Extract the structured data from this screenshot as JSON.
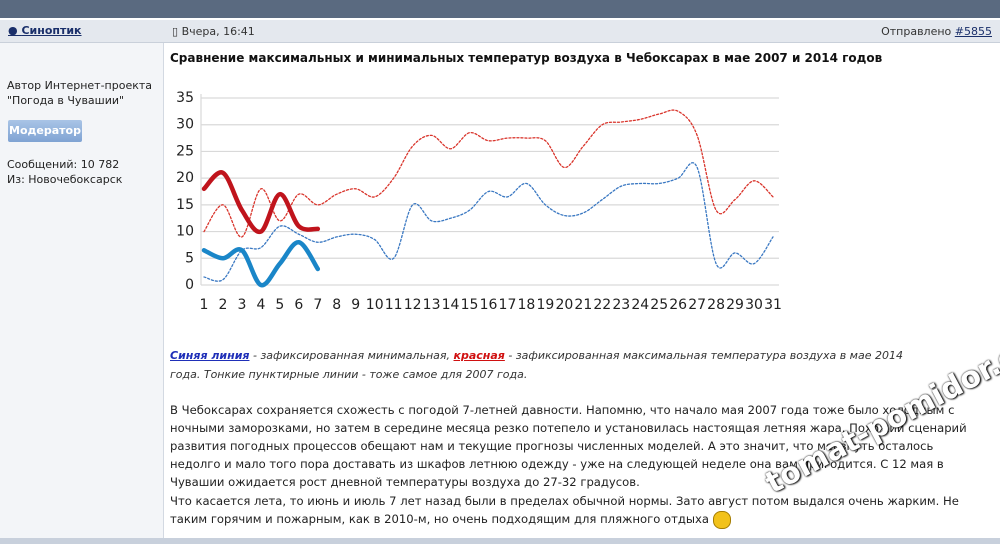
{
  "post": {
    "author": "Синоптик",
    "date": "Вчера, 16:41",
    "sent_label": "Отправлено",
    "post_number": "#5855",
    "author_info": [
      "Автор Интернет-проекта",
      "\"Погода в Чувашии\""
    ],
    "role": "Модератор",
    "messages": "Сообщений: 10 782",
    "from": "Из: Новочебоксарск",
    "title": "Сравнение максимальных и минимальных температур воздуха в Чебоксарах в мае 2007 и 2014 годов",
    "caption": [
      "Синяя линия",
      " - зафиксированная минимальная, ",
      "красная",
      " - зафиксированная максимальная температура воздуха в мае 2014 года. Тонкие пунктирные линии - тоже самое для 2007 года."
    ],
    "paragraphs": [
      "В Чебоксарах сохраняется схожесть с погодой 7-летней давности. Напомню, что начало мая 2007 года тоже было холодным с ночными заморозками, но затем в середине месяца резко потепело и установилась настоящая летняя жара. Похожий сценарий развития погодных процессов обещают нам и текущие прогнозы численных моделей. А это значит, что мерзнуть осталось недолго и мало того пора доставать из шкафов летнюю одежду - уже на следующей неделе она вам пригодится. С 12 мая в Чувашии ожидается рост дневной температуры воздуха до 27-32 градусов.",
      "Что касается лета, то июнь и июль 7 лет назад были в пределах обычной нормы. Зато август потом выдался очень жарким. Не таким горячим и пожарным, как в 2010-м, но очень подходящим для пляжного отдыха"
    ],
    "watermark": "tomat-pomidor.com"
  },
  "chart_data": {
    "type": "line",
    "categories": [
      1,
      2,
      3,
      4,
      5,
      6,
      7,
      8,
      9,
      10,
      11,
      12,
      13,
      14,
      15,
      16,
      17,
      18,
      19,
      20,
      21,
      22,
      23,
      24,
      25,
      26,
      27,
      28,
      29,
      30,
      31
    ],
    "ylim": [
      0,
      35
    ],
    "yticks": [
      0,
      5,
      10,
      15,
      20,
      25,
      30,
      35
    ],
    "grid": true,
    "series": [
      {
        "color": "#d9342b",
        "dashed": true,
        "values": [
          10,
          15,
          9,
          18,
          12,
          17,
          15,
          17,
          18,
          16.5,
          20,
          26,
          28,
          25.5,
          28.5,
          27,
          27.5,
          27.5,
          27,
          22,
          26,
          30,
          30.5,
          31,
          32,
          32.5,
          28,
          14,
          16,
          19.5,
          16.5
        ]
      },
      {
        "color": "#3a78c2",
        "dashed": true,
        "values": [
          1.5,
          1,
          6.5,
          7,
          11,
          9.5,
          8,
          9,
          9.5,
          8.5,
          5,
          15,
          12,
          12.5,
          14,
          17.5,
          16.5,
          19,
          15,
          13,
          13.5,
          16,
          18.5,
          19,
          19,
          20,
          22,
          4,
          6,
          4,
          9
        ]
      },
      {
        "color": "#c0141c",
        "dashed": false,
        "values": [
          18,
          21,
          14,
          10,
          17,
          11,
          10.5,
          null,
          null,
          null,
          null,
          null,
          null,
          null,
          null,
          null,
          null,
          null,
          null,
          null,
          null,
          null,
          null,
          null,
          null,
          null,
          null,
          null,
          null,
          null,
          null
        ]
      },
      {
        "color": "#1a86c8",
        "dashed": false,
        "values": [
          6.5,
          5,
          6.5,
          0,
          4,
          8,
          3,
          null,
          null,
          null,
          null,
          null,
          null,
          null,
          null,
          null,
          null,
          null,
          null,
          null,
          null,
          null,
          null,
          null,
          null,
          null,
          null,
          null,
          null,
          null,
          null
        ]
      }
    ]
  }
}
